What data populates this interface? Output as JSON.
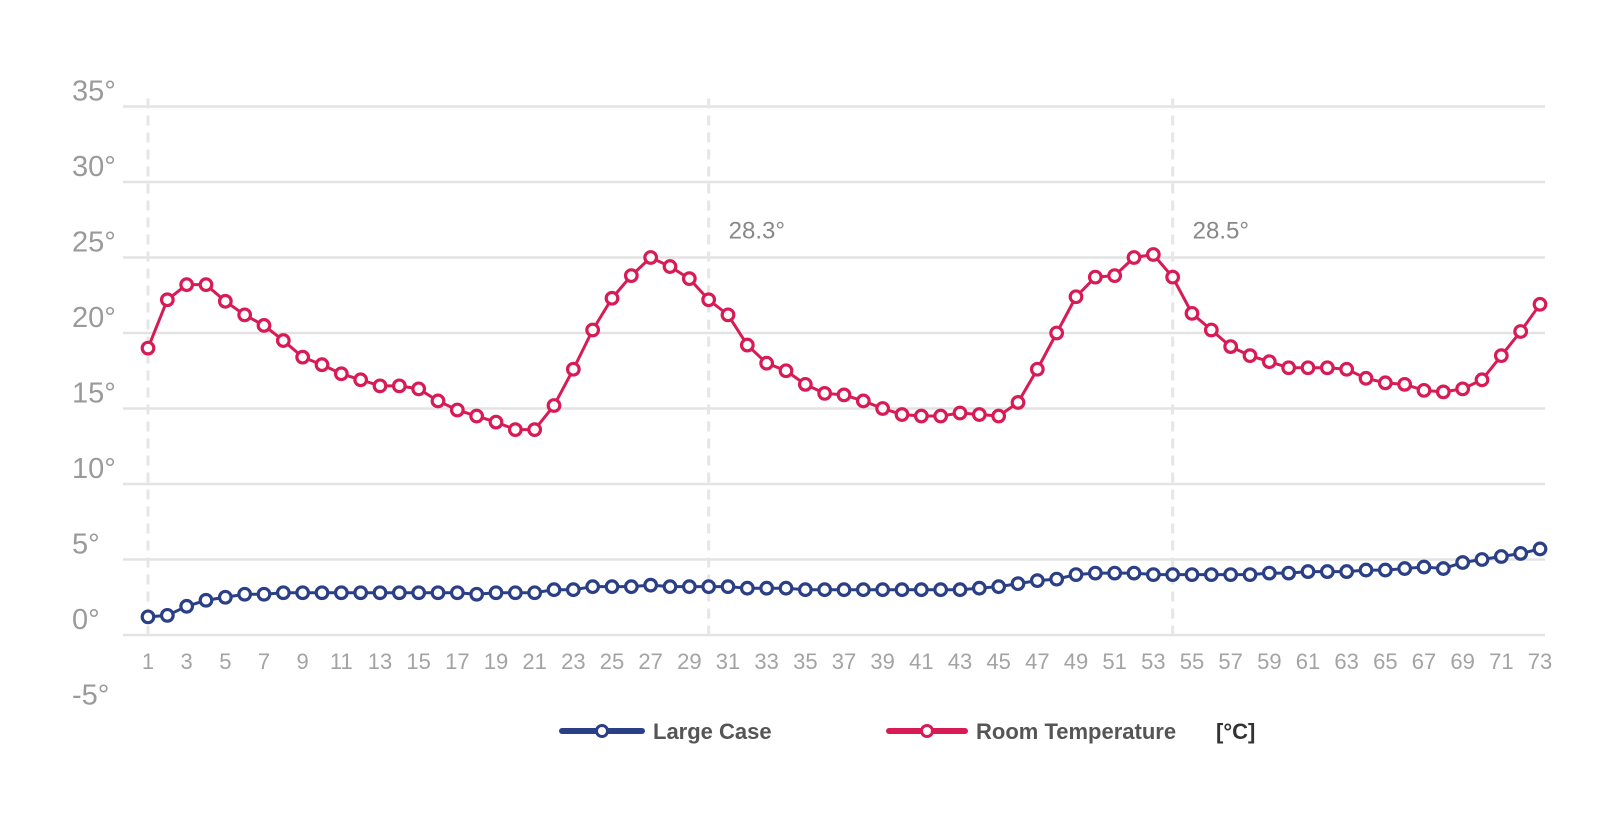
{
  "chart_data": {
    "type": "line",
    "x": [
      1,
      2,
      3,
      4,
      5,
      6,
      7,
      8,
      9,
      10,
      11,
      12,
      13,
      14,
      15,
      16,
      17,
      18,
      19,
      20,
      21,
      22,
      23,
      24,
      25,
      26,
      27,
      28,
      29,
      30,
      31,
      32,
      33,
      34,
      35,
      36,
      37,
      38,
      39,
      40,
      41,
      42,
      43,
      44,
      45,
      46,
      47,
      48,
      49,
      50,
      51,
      52,
      53,
      54,
      55,
      56,
      57,
      58,
      59,
      60,
      61,
      62,
      63,
      64,
      65,
      66,
      67,
      68,
      69,
      70,
      71,
      72,
      73
    ],
    "x_tick_labels": [
      "1",
      "3",
      "5",
      "7",
      "9",
      "11",
      "13",
      "15",
      "17",
      "19",
      "21",
      "23",
      "25",
      "27",
      "29",
      "31",
      "33",
      "35",
      "37",
      "39",
      "41",
      "43",
      "45",
      "47",
      "49",
      "51",
      "53",
      "55",
      "57",
      "59",
      "61",
      "63",
      "65",
      "67",
      "69",
      "71",
      "73"
    ],
    "y_tick_labels": [
      "-5°",
      "0°",
      "5°",
      "10°",
      "15°",
      "20°",
      "25°",
      "30°",
      "35°"
    ],
    "y_tick_values": [
      -5,
      0,
      5,
      10,
      15,
      20,
      25,
      30,
      35
    ],
    "ylim": [
      -5,
      35
    ],
    "grid": "horizontal",
    "vertical_markers": [
      1,
      30,
      54
    ],
    "legend_placement": "bottom-center",
    "series": [
      {
        "name": "Large Case",
        "color": "#2b3f87",
        "values": [
          1.2,
          1.3,
          1.9,
          2.3,
          2.5,
          2.7,
          2.7,
          2.8,
          2.8,
          2.8,
          2.8,
          2.8,
          2.8,
          2.8,
          2.8,
          2.8,
          2.8,
          2.7,
          2.8,
          2.8,
          2.8,
          3.0,
          3.0,
          3.2,
          3.2,
          3.2,
          3.3,
          3.2,
          3.2,
          3.2,
          3.2,
          3.1,
          3.1,
          3.1,
          3.0,
          3.0,
          3.0,
          3.0,
          3.0,
          3.0,
          3.0,
          3.0,
          3.0,
          3.1,
          3.2,
          3.4,
          3.6,
          3.7,
          4.0,
          4.1,
          4.1,
          4.1,
          4.0,
          4.0,
          4.0,
          4.0,
          4.0,
          4.0,
          4.1,
          4.1,
          4.2,
          4.2,
          4.2,
          4.3,
          4.3,
          4.4,
          4.5,
          4.4,
          4.8,
          5.0,
          5.2,
          5.4,
          5.7
        ]
      },
      {
        "name": "Room Temperature",
        "color": "#d81b55",
        "values": [
          19.0,
          22.2,
          23.2,
          23.2,
          22.1,
          21.2,
          20.5,
          19.5,
          18.4,
          17.9,
          17.3,
          16.9,
          16.5,
          16.5,
          16.3,
          15.5,
          14.9,
          14.5,
          14.1,
          13.6,
          13.6,
          15.2,
          17.6,
          20.2,
          22.3,
          23.8,
          25.0,
          24.4,
          23.6,
          22.2,
          21.2,
          19.2,
          18.0,
          17.5,
          16.6,
          16.0,
          15.9,
          15.5,
          15.0,
          14.6,
          14.5,
          14.5,
          14.7,
          14.6,
          14.5,
          15.4,
          17.6,
          20.0,
          22.4,
          23.7,
          23.8,
          25.0,
          25.2,
          23.7,
          21.3,
          20.2,
          19.1,
          18.5,
          18.1,
          17.7,
          17.7,
          17.7,
          17.6,
          17.0,
          16.7,
          16.6,
          16.2,
          16.1,
          16.3,
          16.9,
          18.5,
          20.1,
          21.9
        ]
      }
    ],
    "annotations": [
      {
        "x": 30,
        "y": 28.3,
        "text": "28.3°"
      },
      {
        "x": 54,
        "y": 28.5,
        "text": "28.5°"
      }
    ],
    "legend": {
      "large_case": "Large Case",
      "room_temperature": "Room Temperature",
      "unit": "[°C]"
    }
  }
}
